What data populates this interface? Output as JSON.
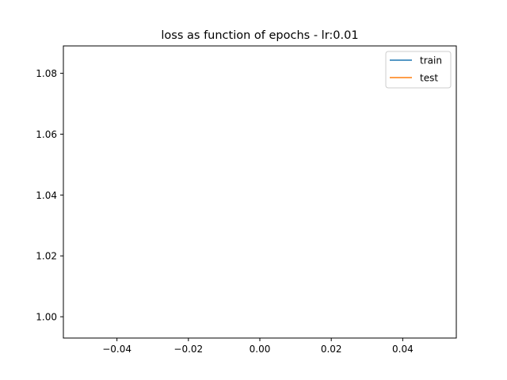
{
  "chart_data": {
    "type": "line",
    "title": "loss as function of epochs - lr:0.01",
    "xlabel": "",
    "ylabel": "",
    "xlim": [
      -0.055,
      0.055
    ],
    "ylim": [
      0.993,
      1.089
    ],
    "x_ticks": [
      -0.04,
      -0.02,
      0.0,
      0.02,
      0.04
    ],
    "x_tick_labels": [
      "−0.04",
      "−0.02",
      "0.00",
      "0.02",
      "0.04"
    ],
    "y_ticks": [
      1.0,
      1.02,
      1.04,
      1.06,
      1.08
    ],
    "y_tick_labels": [
      "1.00",
      "1.02",
      "1.04",
      "1.06",
      "1.08"
    ],
    "grid": false,
    "legend_placement": "top-right",
    "series": [
      {
        "name": "train",
        "color": "#1f77b4",
        "x": [],
        "y": []
      },
      {
        "name": "test",
        "color": "#ff7f0e",
        "x": [],
        "y": []
      }
    ]
  }
}
